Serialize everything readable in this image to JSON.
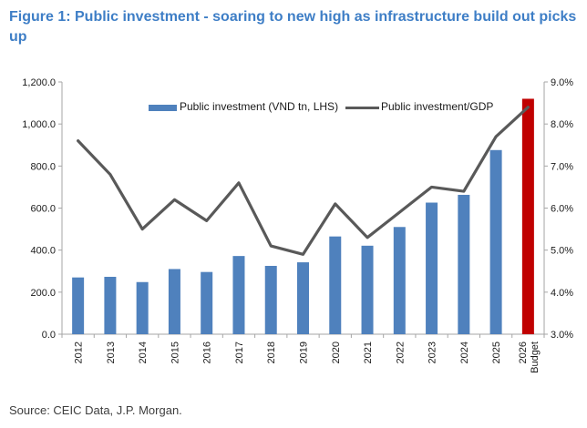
{
  "figure": {
    "title": "Figure 1: Public investment - soaring to new high as infrastructure build out picks up",
    "source": "Source: CEIC Data, J.P. Morgan."
  },
  "legend": {
    "bar_label": "Public investment (VND tn, LHS)",
    "line_label": "Public investment/GDP"
  },
  "colors": {
    "title_blue": "#3E7EC6",
    "bar_blue": "#4F81BD",
    "bar_red": "#C00000",
    "line_gray": "#595959",
    "axis_gray": "#A6A6A6",
    "label_text": "#1a1a1a"
  },
  "chart_data": {
    "type": "bar",
    "subtype": "bar+line combo, dual axis",
    "categories": [
      "2012",
      "2013",
      "2014",
      "2015",
      "2016",
      "2017",
      "2018",
      "2019",
      "2020",
      "2021",
      "2022",
      "2023",
      "2024",
      "2025",
      "2026 Budget"
    ],
    "series": [
      {
        "name": "Public investment (VND tn, LHS)",
        "type": "bar",
        "axis": "left",
        "color": "#4F81BD",
        "highlight_last_color": "#C00000",
        "values": [
          270,
          273,
          248,
          310,
          296,
          372,
          325,
          342,
          465,
          421,
          510,
          626,
          663,
          876,
          1120
        ]
      },
      {
        "name": "Public investment/GDP",
        "type": "line",
        "axis": "right",
        "color": "#595959",
        "values": [
          7.6,
          6.8,
          5.5,
          6.2,
          5.7,
          6.6,
          5.1,
          4.9,
          6.1,
          5.3,
          5.9,
          6.5,
          6.4,
          7.7,
          8.4
        ]
      }
    ],
    "left_axis": {
      "min": 0,
      "max": 1200,
      "tick_step": 200,
      "tick_labels": [
        "0.0",
        "200.0",
        "400.0",
        "600.0",
        "800.0",
        "1,000.0",
        "1,200.0"
      ]
    },
    "right_axis": {
      "min": 3,
      "max": 9,
      "tick_step": 1,
      "tick_labels": [
        "3.0%",
        "4.0%",
        "5.0%",
        "6.0%",
        "7.0%",
        "8.0%",
        "9.0%"
      ]
    },
    "grid": false,
    "legend_position": "top-center-inside",
    "x_tick_label_rotation": -90
  }
}
